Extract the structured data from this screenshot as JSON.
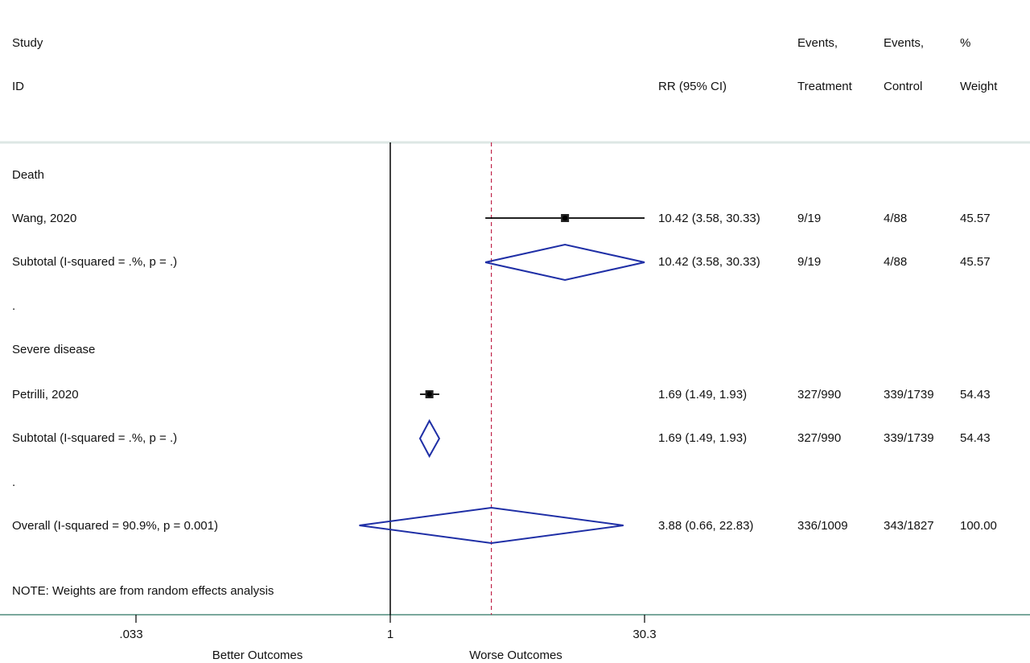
{
  "header": {
    "study": "Study",
    "id": "ID",
    "rr": "RR (95% CI)",
    "events_treat_1": "Events,",
    "events_treat_2": "Treatment",
    "events_ctrl_1": "Events,",
    "events_ctrl_2": "Control",
    "weight_1": "%",
    "weight_2": "Weight"
  },
  "rows": [
    {
      "type": "group",
      "label": "Death"
    },
    {
      "type": "study",
      "label": "Wang, 2020",
      "rr": 10.42,
      "lo": 3.58,
      "hi": 30.33,
      "ci": "10.42 (3.58, 30.33)",
      "treat": "9/19",
      "ctrl": "4/88",
      "weight": "45.57"
    },
    {
      "type": "subtotal",
      "label": "Subtotal  (I-squared = .%, p = .)",
      "rr": 10.42,
      "lo": 3.58,
      "hi": 30.33,
      "ci": "10.42 (3.58, 30.33)",
      "treat": "9/19",
      "ctrl": "4/88",
      "weight": "45.57"
    },
    {
      "type": "sep",
      "label": "."
    },
    {
      "type": "group",
      "label": "Severe disease"
    },
    {
      "type": "study",
      "label": "Petrilli, 2020",
      "rr": 1.69,
      "lo": 1.49,
      "hi": 1.93,
      "ci": "1.69 (1.49, 1.93)",
      "treat": "327/990",
      "ctrl": "339/1739",
      "weight": "54.43"
    },
    {
      "type": "subtotal",
      "label": "Subtotal  (I-squared = .%, p = .)",
      "rr": 1.69,
      "lo": 1.49,
      "hi": 1.93,
      "ci": "1.69 (1.49, 1.93)",
      "treat": "327/990",
      "ctrl": "339/1739",
      "weight": "54.43"
    },
    {
      "type": "sep",
      "label": "."
    },
    {
      "type": "overall",
      "label": "Overall  (I-squared = 90.9%, p = 0.001)",
      "rr": 3.88,
      "lo": 0.66,
      "hi": 22.83,
      "ci": "3.88 (0.66, 22.83)",
      "treat": "336/1009",
      "ctrl": "343/1827",
      "weight": "100.00"
    }
  ],
  "note": "NOTE: Weights are from random effects analysis",
  "axis": {
    "ticks": [
      {
        "value": 0.033,
        "label": ".033"
      },
      {
        "value": 1,
        "label": "1"
      },
      {
        "value": 30.3,
        "label": "30.3"
      }
    ],
    "left_label": "Better Outcomes",
    "right_label": "Worse Outcomes"
  },
  "colors": {
    "header_rule": "#dde7e4",
    "axis_rule": "#7aa89c",
    "diamond": "#1f2fa6",
    "ref_line": "#c0244a",
    "ci_line": "#000000"
  },
  "chart_data": {
    "type": "forest",
    "scale": "log",
    "measure": "RR (95% CI)",
    "xlim": [
      0.033,
      30.3
    ],
    "reference": 1,
    "pooled_estimate": 3.88,
    "series": [
      {
        "name": "Wang, 2020",
        "rr": 10.42,
        "ci": [
          3.58,
          30.33
        ],
        "weight": 45.57
      },
      {
        "name": "Petrilli, 2020",
        "rr": 1.69,
        "ci": [
          1.49,
          1.93
        ],
        "weight": 54.43
      }
    ],
    "subtotals": [
      {
        "group": "Death",
        "rr": 10.42,
        "ci": [
          3.58,
          30.33
        ]
      },
      {
        "group": "Severe disease",
        "rr": 1.69,
        "ci": [
          1.49,
          1.93
        ]
      }
    ],
    "overall": {
      "rr": 3.88,
      "ci": [
        0.66,
        22.83
      ]
    }
  }
}
